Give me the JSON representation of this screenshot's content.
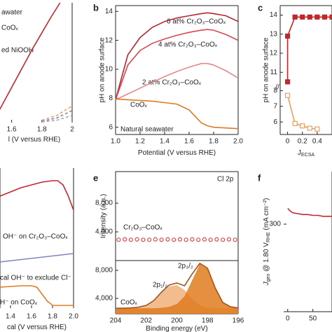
{
  "chart_data": [
    {
      "type": "line",
      "xlabel": "l (V versus RHE)",
      "xlim": [
        1.5,
        2.0
      ],
      "xticks": [
        1.6,
        1.8,
        2.0
      ],
      "ylim": [
        0,
        1
      ],
      "annotations": [
        "awater",
        "CoOₓ",
        "ed NiOOH"
      ],
      "series": [
        {
          "color": "#c0272d",
          "x": [
            1.5,
            1.56,
            1.62,
            1.68,
            1.74,
            1.8,
            1.86,
            1.92
          ],
          "values": [
            0.06,
            0.2,
            0.34,
            0.48,
            0.62,
            0.75,
            0.88,
            1.0
          ]
        },
        {
          "color": "#e8a060",
          "dashed": true,
          "x": [
            1.8,
            1.9,
            2.0
          ],
          "values": [
            0.02,
            0.06,
            0.14
          ]
        },
        {
          "color": "#7d86b8",
          "dashed": true,
          "x": [
            1.8,
            1.9,
            2.0
          ],
          "values": [
            0.01,
            0.04,
            0.1
          ]
        },
        {
          "color": "#aaaaaa",
          "dashed": true,
          "x": [
            1.8,
            1.9,
            2.0
          ],
          "values": [
            0.005,
            0.02,
            0.06
          ]
        }
      ]
    },
    {
      "type": "line",
      "panel_label": "b",
      "xlabel": "Potential (V versus RHE)",
      "ylabel": "pH on anode surface",
      "xlim": [
        1.0,
        2.0
      ],
      "xticks": [
        {
          "value": 1.0,
          "label": "1.0"
        },
        1.2,
        1.4,
        1.6,
        1.8,
        {
          "value": 2.0,
          "label": "2.0"
        }
      ],
      "ylim": [
        5.5,
        14.4
      ],
      "yticks": [
        6,
        8,
        10,
        12,
        14
      ],
      "annotations": [
        "6 at% Cr₂O₃–CoOₓ",
        "4 at% Cr₂O₃–CoOₓ",
        "2 at% Cr₂O₃–CoOₓ",
        "CoOₓ",
        "Natural seawater"
      ],
      "series": [
        {
          "color": "#b5232e",
          "x": [
            1.0,
            1.1,
            1.2,
            1.3,
            1.4,
            1.5,
            1.6,
            1.7,
            1.75,
            1.8,
            1.9,
            2.0
          ],
          "values": [
            7.9,
            11.0,
            12.2,
            12.9,
            13.3,
            13.55,
            13.7,
            13.85,
            13.9,
            13.85,
            13.7,
            13.3
          ]
        },
        {
          "color": "#d9474f",
          "x": [
            1.0,
            1.1,
            1.2,
            1.3,
            1.4,
            1.5,
            1.6,
            1.7,
            1.75,
            1.8,
            1.9,
            2.0
          ],
          "values": [
            7.9,
            10.3,
            11.3,
            11.8,
            12.1,
            12.35,
            12.55,
            12.7,
            12.75,
            12.7,
            12.4,
            12.0
          ]
        },
        {
          "color": "#e8878a",
          "x": [
            1.0,
            1.1,
            1.2,
            1.3,
            1.4,
            1.5,
            1.6,
            1.7,
            1.75,
            1.8,
            1.9,
            2.0
          ],
          "values": [
            7.9,
            8.3,
            8.7,
            9.1,
            9.5,
            9.85,
            10.15,
            10.4,
            10.4,
            10.3,
            9.9,
            9.4
          ]
        },
        {
          "color": "#e07b1f",
          "x": [
            1.0,
            1.1,
            1.2,
            1.3,
            1.4,
            1.5,
            1.6,
            1.7,
            1.75,
            1.8,
            1.9,
            2.0
          ],
          "values": [
            7.95,
            7.9,
            7.85,
            7.8,
            7.7,
            7.6,
            7.2,
            6.3,
            6.1,
            6.0,
            5.95,
            5.9
          ]
        }
      ]
    },
    {
      "type": "line",
      "panel_label": "c",
      "ylabel": "pH on anode surface",
      "xlabel": "J",
      "xlabel_sub": "ECSA",
      "xlim": [
        -0.1,
        0.6
      ],
      "xticks": [
        0,
        0.2,
        0.4
      ],
      "ylim": [
        10.2,
        14.5
      ],
      "yticks": [
        11,
        12,
        13,
        14
      ],
      "y2lim": [
        5.2,
        8.2
      ],
      "y2ticks": [
        6,
        7,
        8
      ],
      "series": [
        {
          "color": "#c0272d",
          "marker": "square",
          "filled": true,
          "x": [
            0,
            0,
            0.1,
            0.2,
            0.3,
            0.4,
            0.5,
            0.6
          ],
          "values": [
            10.5,
            12.9,
            13.9,
            13.9,
            13.9,
            13.9,
            13.9,
            13.9
          ]
        },
        {
          "color": "#e8a060",
          "marker": "square",
          "filled": false,
          "axis": "y2",
          "x": [
            0,
            0.1,
            0.2,
            0.3,
            0.4
          ],
          "values": [
            7.7,
            5.9,
            5.75,
            5.6,
            5.55
          ]
        }
      ]
    },
    {
      "type": "line",
      "xlabel": "cal (V versus RHE)",
      "xlim": [
        1.3,
        2.0
      ],
      "xticks": [
        1.4,
        1.6,
        1.8,
        {
          "value": 2.0,
          "label": "2.0"
        }
      ],
      "ylim": [
        0,
        1
      ],
      "annotations": [
        "OH⁻ on Cr₂O₃–CoOₓ",
        "cal OH⁻ to exclude Cl⁻",
        "H⁻ on CoOₓ"
      ],
      "series": [
        {
          "color": "#c0272d",
          "x": [
            1.3,
            1.4,
            1.5,
            1.6,
            1.7,
            1.8,
            1.85,
            1.9,
            1.95,
            2.0
          ],
          "values": [
            0.8,
            0.83,
            0.86,
            0.88,
            0.9,
            0.91,
            0.91,
            0.88,
            0.8,
            0.7
          ]
        },
        {
          "color": "#7d86b8",
          "x": [
            1.3,
            2.0
          ],
          "values": [
            0.33,
            0.39
          ]
        },
        {
          "color": "#e07b1f",
          "x": [
            1.3,
            1.5,
            1.6,
            1.65,
            1.7,
            1.75,
            1.8,
            2.0
          ],
          "values": [
            0.15,
            0.16,
            0.16,
            0.15,
            0.1,
            0.05,
            0.02,
            0.02
          ]
        }
      ]
    },
    {
      "type": "line",
      "panel_label": "e",
      "title": "Cl 2p",
      "ylabel": "Intensity (a.u.)",
      "xlim": [
        204,
        196
      ],
      "ylim": [
        0,
        12400
      ],
      "yticks": [
        {
          "value": 4000,
          "label": "4,000"
        },
        {
          "value": 8000,
          "label": "8,000"
        }
      ],
      "annotations": [
        "Cr₂O₃–CoOₓ"
      ],
      "series": [
        {
          "color": "#d9474f",
          "marker": "circle",
          "filled": false,
          "nolines": true,
          "x": [
            203.8,
            203.4,
            203.0,
            202.6,
            202.2,
            201.8,
            201.4,
            201.0,
            200.6,
            200.2,
            199.8,
            199.4,
            199.0,
            198.6,
            198.2,
            197.8,
            197.4,
            197.0,
            196.6,
            196.2
          ],
          "values": [
            2900,
            2950,
            2900,
            2950,
            2900,
            2900,
            2950,
            2900,
            2950,
            2900,
            2950,
            2900,
            2950,
            2900,
            2950,
            2900,
            2950,
            2900,
            2950,
            2900
          ]
        }
      ]
    },
    {
      "type": "line",
      "xlabel": "Binding energy (eV)",
      "xlim": [
        204,
        196
      ],
      "xticks": [
        204,
        202,
        200,
        198,
        196
      ],
      "ylim": [
        1800,
        9400
      ],
      "yticks": [
        {
          "value": 4000,
          "label": "4,000"
        },
        {
          "value": 8000,
          "label": "8,000"
        }
      ],
      "annotations": [
        "2p₁/₂",
        "2p₃/₂",
        "CoOₓ"
      ],
      "series": [
        {
          "color": "#f0b07a",
          "fill": true,
          "x": [
            204,
            203.5,
            203,
            202.5,
            202,
            201.5,
            201,
            200.5,
            200,
            199.5,
            199,
            198.5,
            198,
            197.5,
            197,
            196.5,
            196
          ],
          "values": [
            2600,
            2600,
            2650,
            2750,
            3000,
            3700,
            4800,
            5700,
            5900,
            5200,
            3900,
            3000,
            2700,
            2600,
            2600,
            2600,
            2600
          ]
        },
        {
          "color": "#e07b1f",
          "fill": true,
          "x": [
            204,
            203.5,
            203,
            202.5,
            202,
            201.5,
            201,
            200.5,
            200,
            199.5,
            199,
            198.5,
            198,
            197.5,
            197,
            196.5,
            196
          ],
          "values": [
            2600,
            2600,
            2600,
            2600,
            2600,
            2600,
            2650,
            2800,
            3200,
            4300,
            6600,
            8900,
            8200,
            5400,
            3300,
            2750,
            2650
          ]
        },
        {
          "color": "#a0521a",
          "x": [
            204,
            203.5,
            203,
            202.5,
            202,
            201.5,
            201,
            200.5,
            200,
            199.5,
            199,
            198.5,
            198,
            197.5,
            197,
            196.5,
            196
          ],
          "values": [
            2600,
            2600,
            2650,
            2750,
            3000,
            3700,
            4900,
            5900,
            6200,
            5800,
            7500,
            9000,
            8300,
            5500,
            3400,
            2800,
            2650
          ]
        }
      ]
    },
    {
      "type": "line",
      "panel_label": "f",
      "ylabel_parts": [
        "J",
        "geo",
        " @ 1.80 V",
        "RHE",
        " (mA cm⁻²)"
      ],
      "xlim": [
        -8,
        88
      ],
      "xticks": [
        0,
        50
      ],
      "ylim": [
        200,
        360
      ],
      "yticks": [
        300
      ],
      "series": [
        {
          "color": "#c0272d",
          "x": [
            0,
            5,
            10,
            20,
            30,
            40,
            50,
            60,
            70,
            80,
            88
          ],
          "values": [
            318,
            315,
            313,
            312,
            311,
            311,
            310,
            310,
            309,
            309,
            309
          ]
        }
      ]
    }
  ]
}
